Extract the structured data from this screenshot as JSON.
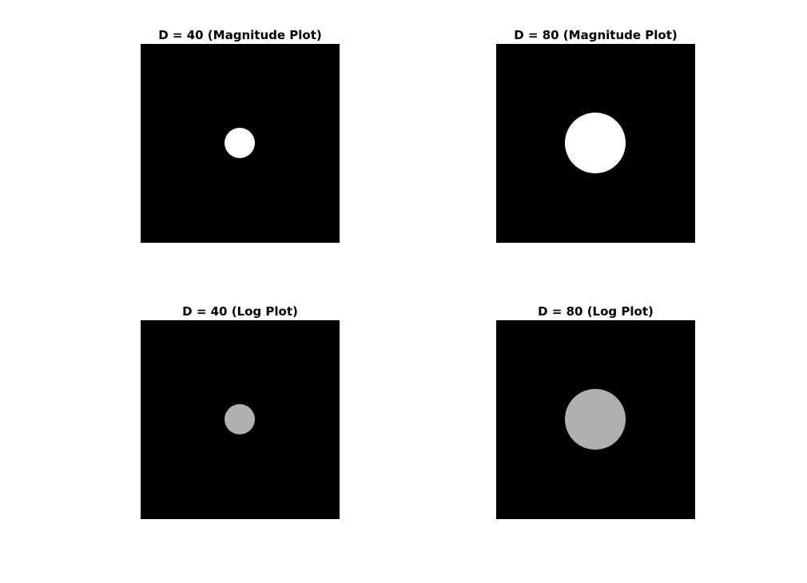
{
  "figure": {
    "background": "#ffffff",
    "panels": [
      {
        "id": "magnitude-d40",
        "title": "D = 40 (Magnitude Plot)",
        "cutoff_D": 40,
        "plot_type": "Magnitude",
        "image": {
          "background": "#000000",
          "disk_color": "#ffffff",
          "disk_intensity": 1.0
        }
      },
      {
        "id": "magnitude-d80",
        "title": "D = 80 (Magnitude Plot)",
        "cutoff_D": 80,
        "plot_type": "Magnitude",
        "image": {
          "background": "#000000",
          "disk_color": "#ffffff",
          "disk_intensity": 1.0
        }
      },
      {
        "id": "log-d40",
        "title": "D = 40 (Log Plot)",
        "cutoff_D": 40,
        "plot_type": "Log",
        "image": {
          "background": "#000000",
          "disk_color": "#b0b0b0",
          "disk_intensity": 0.69
        }
      },
      {
        "id": "log-d80",
        "title": "D = 80 (Log Plot)",
        "cutoff_D": 80,
        "plot_type": "Log",
        "image": {
          "background": "#000000",
          "disk_color": "#b0b0b0",
          "disk_intensity": 0.69
        }
      }
    ]
  }
}
